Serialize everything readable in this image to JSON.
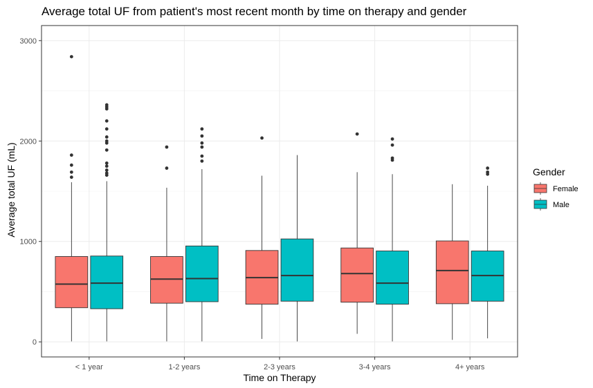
{
  "chart_data": {
    "type": "box",
    "title": "Average total UF from patient's most recent month by time on therapy and gender",
    "xlabel": "Time on Therapy",
    "ylabel": "Average total UF (mL)",
    "ylim": [
      -150,
      3150
    ],
    "yticks": [
      0,
      1000,
      2000,
      3000
    ],
    "grid": true,
    "categories": [
      "< 1 year",
      "1-2 years",
      "2-3 years",
      "3-4 years",
      "4+ years"
    ],
    "legend": {
      "title": "Gender",
      "position": "right"
    },
    "colors": {
      "Female": "#F8766D",
      "Male": "#00BFC4"
    },
    "series": [
      {
        "name": "Female",
        "boxes": [
          {
            "min": 5,
            "q1": 340,
            "median": 575,
            "q3": 850,
            "max": 1590,
            "outliers": [
              1640,
              1690,
              1760,
              1860,
              2840
            ]
          },
          {
            "min": 5,
            "q1": 385,
            "median": 625,
            "q3": 850,
            "max": 1535,
            "outliers": [
              1730,
              1940
            ]
          },
          {
            "min": 30,
            "q1": 375,
            "median": 640,
            "q3": 910,
            "max": 1655,
            "outliers": [
              2030
            ]
          },
          {
            "min": 80,
            "q1": 395,
            "median": 680,
            "q3": 935,
            "max": 1690,
            "outliers": [
              2070
            ]
          },
          {
            "min": 20,
            "q1": 380,
            "median": 710,
            "q3": 1005,
            "max": 1570,
            "outliers": []
          }
        ]
      },
      {
        "name": "Male",
        "boxes": [
          {
            "min": 5,
            "q1": 330,
            "median": 585,
            "q3": 855,
            "max": 1600,
            "outliers": [
              1660,
              1680,
              1710,
              1750,
              1780,
              1910,
              1980,
              2000,
              2040,
              2120,
              2200,
              2320,
              2340,
              2360
            ]
          },
          {
            "min": 5,
            "q1": 400,
            "median": 630,
            "q3": 955,
            "max": 1720,
            "outliers": [
              1800,
              1850,
              1940,
              1980,
              2050,
              2120
            ]
          },
          {
            "min": 5,
            "q1": 405,
            "median": 660,
            "q3": 1025,
            "max": 1860,
            "outliers": []
          },
          {
            "min": 5,
            "q1": 375,
            "median": 585,
            "q3": 905,
            "max": 1670,
            "outliers": [
              1810,
              1830,
              1960,
              2020
            ]
          },
          {
            "min": 35,
            "q1": 405,
            "median": 660,
            "q3": 905,
            "max": 1555,
            "outliers": [
              1670,
              1690,
              1730
            ]
          }
        ]
      }
    ]
  }
}
